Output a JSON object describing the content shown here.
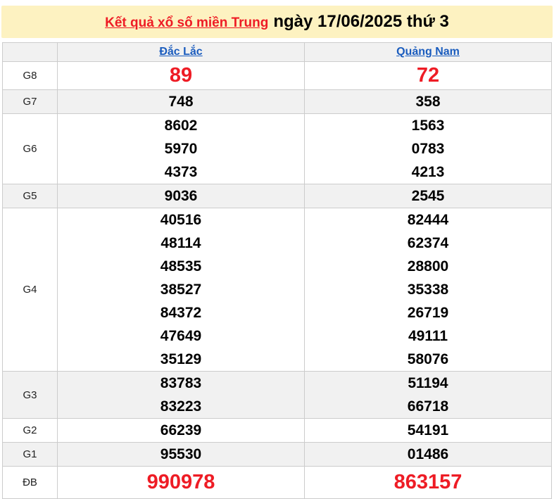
{
  "banner": {
    "link_text": "Kết quả xổ số miền Trung",
    "date_text": "ngày 17/06/2025 thứ 3"
  },
  "colors": {
    "banner_bg": "#FDF2C1",
    "accent_red": "#EE1C25",
    "link_blue": "#1A5CBE",
    "row_alt_bg": "#F1F1F1",
    "border_gray": "#CCCCCC"
  },
  "table": {
    "columns": [
      "Đắc Lắc",
      "Quảng Nam"
    ],
    "rows": [
      {
        "label": "G8",
        "highlight": true,
        "dacLac": [
          "89"
        ],
        "quangNam": [
          "72"
        ]
      },
      {
        "label": "G7",
        "highlight": false,
        "dacLac": [
          "748"
        ],
        "quangNam": [
          "358"
        ]
      },
      {
        "label": "G6",
        "highlight": false,
        "dacLac": [
          "8602",
          "5970",
          "4373"
        ],
        "quangNam": [
          "1563",
          "0783",
          "4213"
        ]
      },
      {
        "label": "G5",
        "highlight": false,
        "dacLac": [
          "9036"
        ],
        "quangNam": [
          "2545"
        ]
      },
      {
        "label": "G4",
        "highlight": false,
        "dacLac": [
          "40516",
          "48114",
          "48535",
          "38527",
          "84372",
          "47649",
          "35129"
        ],
        "quangNam": [
          "82444",
          "62374",
          "28800",
          "35338",
          "26719",
          "49111",
          "58076"
        ]
      },
      {
        "label": "G3",
        "highlight": false,
        "dacLac": [
          "83783",
          "83223"
        ],
        "quangNam": [
          "51194",
          "66718"
        ]
      },
      {
        "label": "G2",
        "highlight": false,
        "dacLac": [
          "66239"
        ],
        "quangNam": [
          "54191"
        ]
      },
      {
        "label": "G1",
        "highlight": false,
        "dacLac": [
          "95530"
        ],
        "quangNam": [
          "01486"
        ]
      },
      {
        "label": "ĐB",
        "highlight": true,
        "dacLac": [
          "990978"
        ],
        "quangNam": [
          "863157"
        ]
      }
    ]
  }
}
